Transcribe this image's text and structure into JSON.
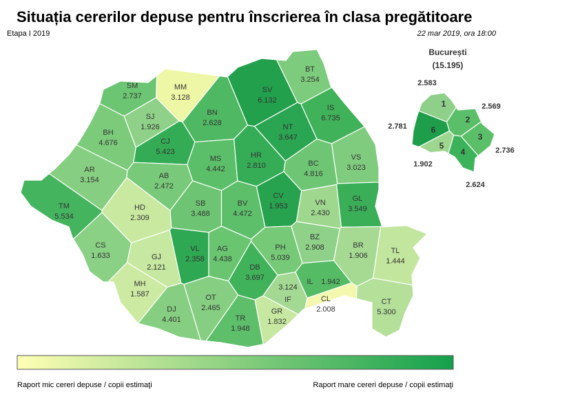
{
  "header": {
    "title": "Situația cererilor depuse pentru înscrierea în clasa pregătitoare",
    "stage": "Etapa I 2019",
    "timestamp": "22 mar 2019, ora 18:00"
  },
  "counties": [
    {
      "code": "SM",
      "value": "2.737",
      "color": "#6cc572"
    },
    {
      "code": "MM",
      "value": "3.128",
      "color": "#eef7a6"
    },
    {
      "code": "BT",
      "value": "3.254",
      "color": "#7dcb7c"
    },
    {
      "code": "SV",
      "value": "6.132",
      "color": "#22a04c"
    },
    {
      "code": "IS",
      "value": "6.735",
      "color": "#3fb25a"
    },
    {
      "code": "BN",
      "value": "2.628",
      "color": "#4fb862"
    },
    {
      "code": "SJ",
      "value": "1.926",
      "color": "#8fd188"
    },
    {
      "code": "BH",
      "value": "4.676",
      "color": "#7ccb7b"
    },
    {
      "code": "CJ",
      "value": "5.423",
      "color": "#33ac55"
    },
    {
      "code": "NT",
      "value": "3.647",
      "color": "#2aa551"
    },
    {
      "code": "VS",
      "value": "3.023",
      "color": "#80cc7e"
    },
    {
      "code": "MS",
      "value": "4.442",
      "color": "#5bbf69"
    },
    {
      "code": "HR",
      "value": "2.810",
      "color": "#35ad56"
    },
    {
      "code": "BC",
      "value": "4.816",
      "color": "#6ec674"
    },
    {
      "code": "AR",
      "value": "3.154",
      "color": "#86ce81"
    },
    {
      "code": "AB",
      "value": "2.472",
      "color": "#78c979"
    },
    {
      "code": "SB",
      "value": "3.488",
      "color": "#6dc573"
    },
    {
      "code": "BV",
      "value": "4.472",
      "color": "#5ebf6b"
    },
    {
      "code": "CV",
      "value": "1.953",
      "color": "#27a34f"
    },
    {
      "code": "VN",
      "value": "2.430",
      "color": "#9fd78f"
    },
    {
      "code": "GL",
      "value": "3.549",
      "color": "#3aaf58"
    },
    {
      "code": "TM",
      "value": "5.534",
      "color": "#45b45e"
    },
    {
      "code": "HD",
      "value": "2.309",
      "color": "#c9e9a1"
    },
    {
      "code": "CS",
      "value": "1.633",
      "color": "#8ad085"
    },
    {
      "code": "VL",
      "value": "2.358",
      "color": "#2ea853"
    },
    {
      "code": "AG",
      "value": "4.438",
      "color": "#6ac571"
    },
    {
      "code": "PH",
      "value": "5.039",
      "color": "#76c977"
    },
    {
      "code": "BZ",
      "value": "2.908",
      "color": "#8fd188"
    },
    {
      "code": "BR",
      "value": "1.906",
      "color": "#a6da93"
    },
    {
      "code": "TL",
      "value": "1.444",
      "color": "#c3e69e"
    },
    {
      "code": "GJ",
      "value": "2.121",
      "color": "#c6e8a0"
    },
    {
      "code": "DB",
      "value": "3.697",
      "color": "#3fb25a"
    },
    {
      "code": "MH",
      "value": "1.587",
      "color": "#cdeaa3"
    },
    {
      "code": "IL",
      "value": "1.942",
      "color": "#55bb65"
    },
    {
      "code": "IF",
      "value": "3.124",
      "color": "#a3d992"
    },
    {
      "code": "CL",
      "value": "2.008",
      "color": "#f4f8ae"
    },
    {
      "code": "CT",
      "value": "5.300",
      "color": "#b4e09a"
    },
    {
      "code": "DJ",
      "value": "4.401",
      "color": "#86ce81"
    },
    {
      "code": "OT",
      "value": "2.465",
      "color": "#86ce81"
    },
    {
      "code": "GR",
      "value": "1.832",
      "color": "#c6e8a0"
    },
    {
      "code": "TR",
      "value": "1.948",
      "color": "#5ebf6b"
    }
  ],
  "bucharest": {
    "title": "București",
    "total": "(15.195)",
    "sectors": [
      {
        "label": "1",
        "value": "2.583",
        "color": "#8ed08a"
      },
      {
        "label": "2",
        "value": "2.569",
        "color": "#5bbf6a"
      },
      {
        "label": "3",
        "value": "2.736",
        "color": "#5bbf6a"
      },
      {
        "label": "4",
        "value": "2.624",
        "color": "#3cb35a"
      },
      {
        "label": "5",
        "value": "1.902",
        "color": "#9ed68f"
      },
      {
        "label": "6",
        "value": "2.781",
        "color": "#1e9e4a"
      }
    ]
  },
  "legend": {
    "low": "Raport mic cereri depuse / copii estimaţi",
    "high": "Raport mare cereri depuse / copii estimaţi",
    "colors": [
      "#ffffb5",
      "#14a04a"
    ]
  }
}
